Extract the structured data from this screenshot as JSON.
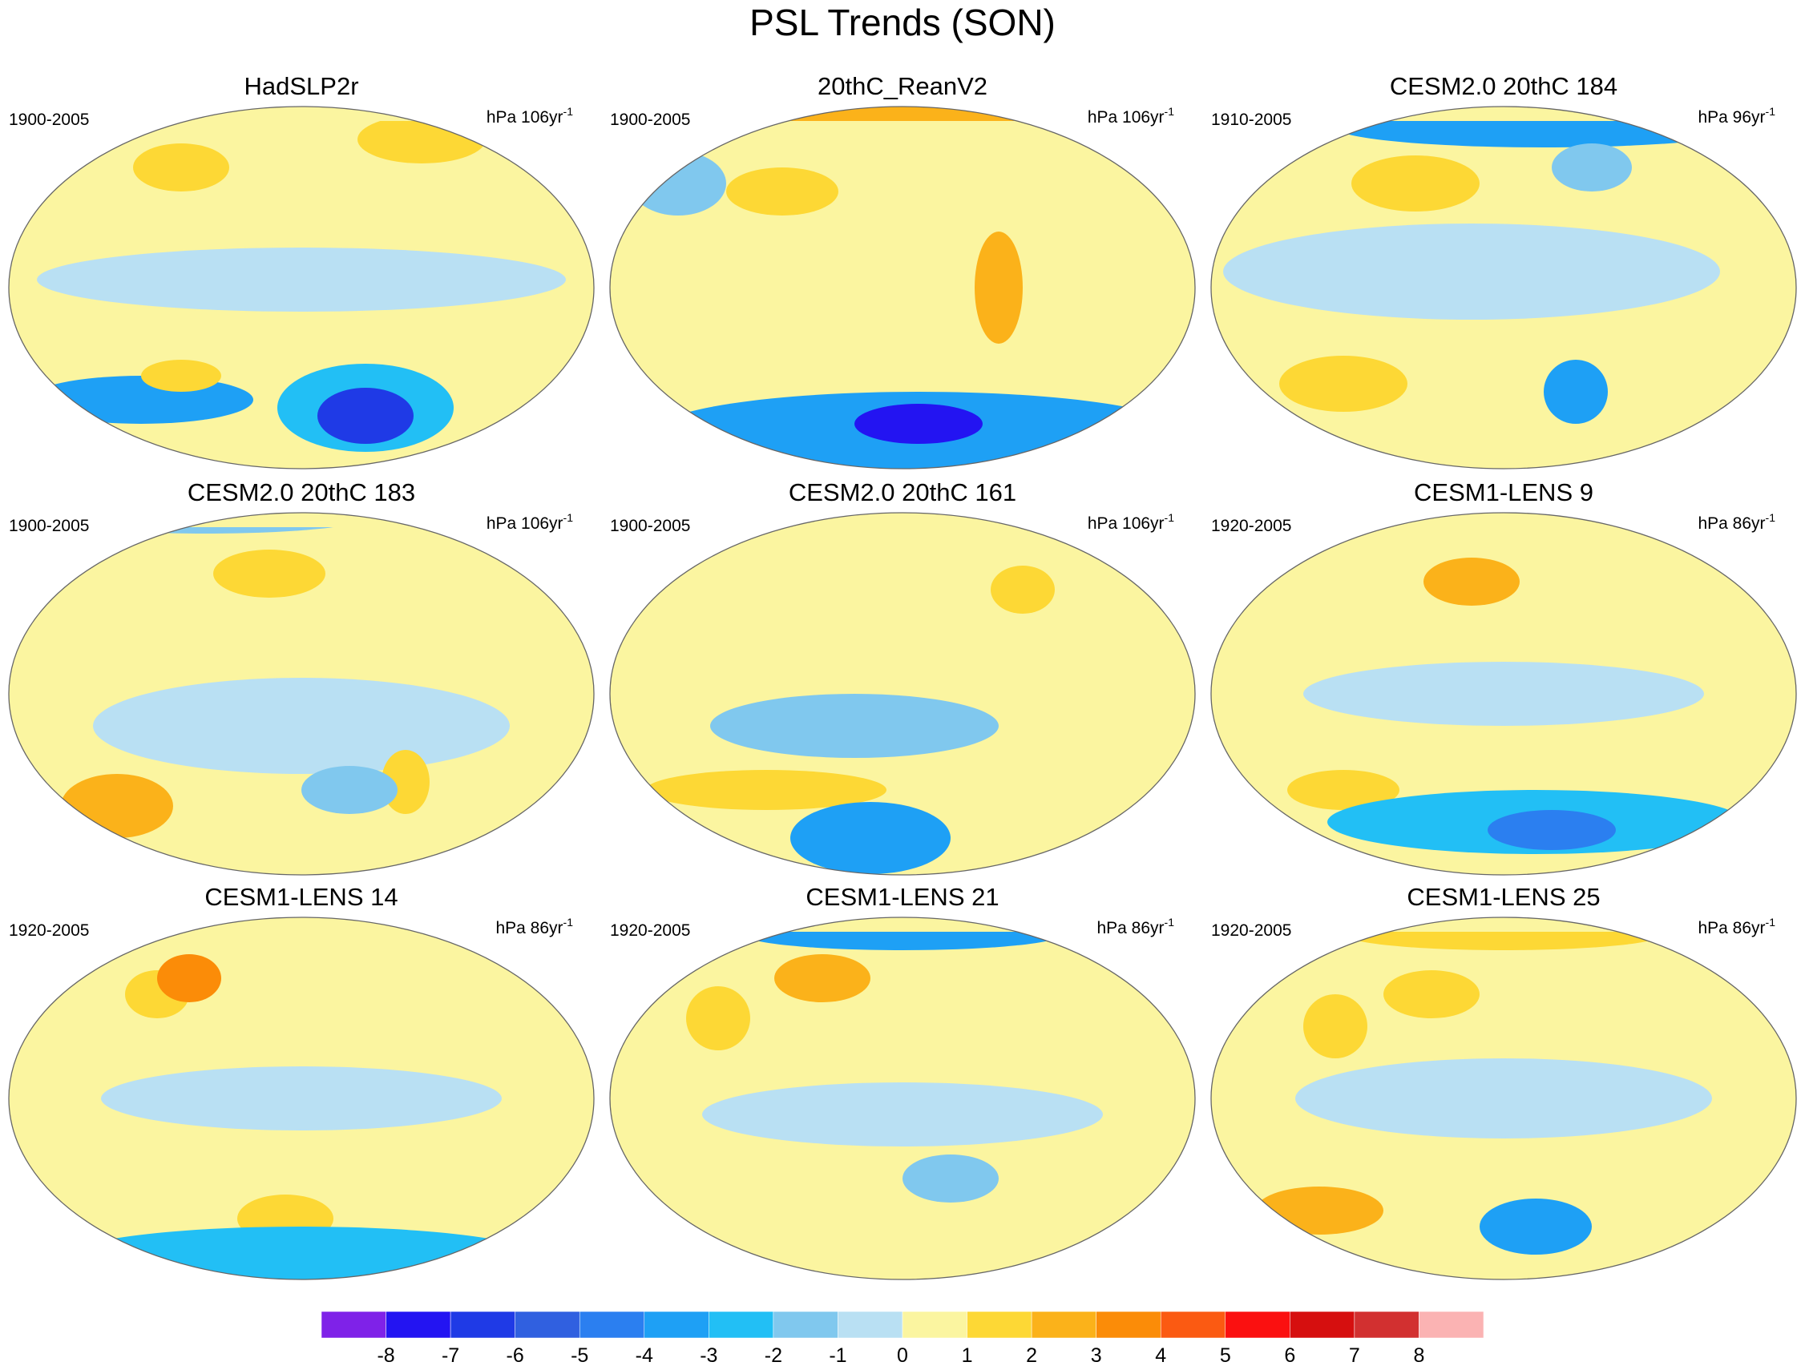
{
  "figure": {
    "title": "PSL Trends (SON)",
    "panels": [
      {
        "title": "HadSLP2r",
        "period": "1900-2005",
        "units": {
          "text": "hPa 106yr",
          "sup": "-1"
        }
      },
      {
        "title": "20thC_ReanV2",
        "period": "1900-2005",
        "units": {
          "text": "hPa 106yr",
          "sup": "-1"
        }
      },
      {
        "title": "CESM2.0 20thC 184",
        "period": "1910-2005",
        "units": {
          "text": "hPa 96yr",
          "sup": "-1"
        }
      },
      {
        "title": "CESM2.0 20thC 183",
        "period": "1900-2005",
        "units": {
          "text": "hPa 106yr",
          "sup": "-1"
        }
      },
      {
        "title": "CESM2.0 20thC 161",
        "period": "1900-2005",
        "units": {
          "text": "hPa 106yr",
          "sup": "-1"
        }
      },
      {
        "title": "CESM1-LENS 9",
        "period": "1920-2005",
        "units": {
          "text": "hPa 86yr",
          "sup": "-1"
        }
      },
      {
        "title": "CESM1-LENS 14",
        "period": "1920-2005",
        "units": {
          "text": "hPa 86yr",
          "sup": "-1"
        }
      },
      {
        "title": "CESM1-LENS 21",
        "period": "1920-2005",
        "units": {
          "text": "hPa 86yr",
          "sup": "-1"
        }
      },
      {
        "title": "CESM1-LENS 25",
        "period": "1920-2005",
        "units": {
          "text": "hPa 86yr",
          "sup": "-1"
        }
      }
    ],
    "colorbar": {
      "ticks": [
        -8,
        -7,
        -6,
        -5,
        -4,
        -3,
        -2,
        -1,
        0,
        1,
        2,
        3,
        4,
        5,
        6,
        7,
        8
      ],
      "colors": [
        "#7f22e8",
        "#2314f2",
        "#1f3ae6",
        "#3060e0",
        "#2b7ff0",
        "#1ea0f5",
        "#22bff5",
        "#80c8ee",
        "#b9e0f3",
        "#fbf5a0",
        "#fdd835",
        "#fbb21a",
        "#fb8c08",
        "#fb5a12",
        "#fb1010",
        "#d60f0f",
        "#d23030",
        "#fbb3b3"
      ]
    }
  }
}
